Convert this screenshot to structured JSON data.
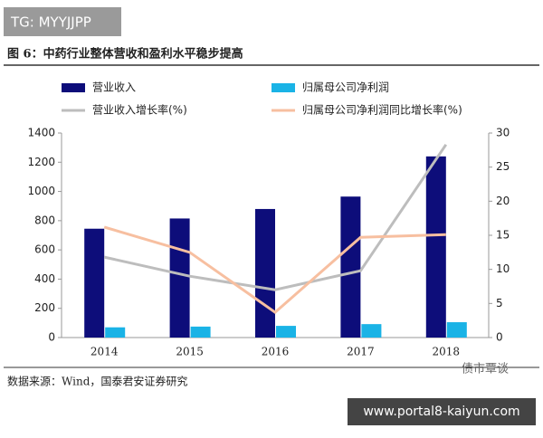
{
  "watermark": "TG: MYYJJPP",
  "figure_title": "图 6：中药行业整体营收和盈利水平稳步提高",
  "source": "数据来源：Wind，国泰君安证券研究",
  "corner_watermark": "债市覃谈",
  "footer_url": "www.portal8-kaiyun.com",
  "chart_data": {
    "type": "bar",
    "categories": [
      "2014",
      "2015",
      "2016",
      "2017",
      "2018"
    ],
    "series": [
      {
        "name": "营业收入",
        "type": "bar",
        "color": "#0d0d7a",
        "values": [
          745,
          815,
          880,
          965,
          1240
        ]
      },
      {
        "name": "归属母公司净利润",
        "type": "bar",
        "color": "#1ab3e6",
        "values": [
          70,
          75,
          80,
          92,
          105
        ]
      },
      {
        "name": "营业收入增长率(%)",
        "type": "line",
        "axis": "y2",
        "color": "#bdbdbd",
        "values": [
          11.8,
          9,
          7,
          9.8,
          28.3
        ]
      },
      {
        "name": "归属母公司净利润同比增长率(%)",
        "type": "line",
        "axis": "y2",
        "color": "#f7bfa0",
        "values": [
          16.2,
          12.5,
          3.7,
          14.7,
          15.1
        ]
      }
    ],
    "ylim": [
      0,
      1400
    ],
    "yticks": [
      0,
      200,
      400,
      600,
      800,
      1000,
      1200,
      1400
    ],
    "y2lim": [
      0,
      30
    ],
    "y2ticks": [
      0,
      5,
      10,
      15,
      20,
      25,
      30
    ]
  }
}
